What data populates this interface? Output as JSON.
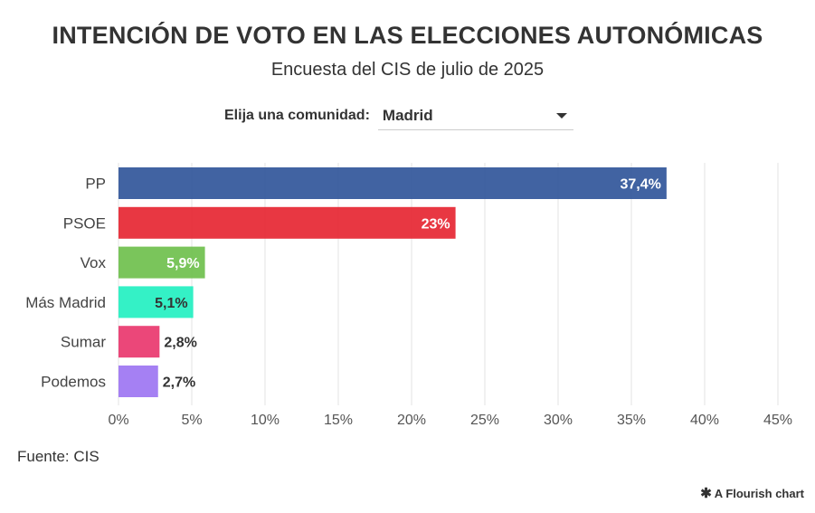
{
  "header": {
    "title": "INTENCIÓN DE VOTO EN LAS ELECCIONES AUTONÓMICAS",
    "subtitle": "Encuesta del CIS de julio de 2025"
  },
  "control": {
    "label": "Elija una comunidad:",
    "selected": "Madrid"
  },
  "footer": {
    "source": "Fuente: CIS",
    "credit": "A Flourish chart",
    "credit_icon": "flourish-asterisk-icon"
  },
  "chart_data": {
    "type": "bar",
    "orientation": "horizontal",
    "categories": [
      "PP",
      "PSOE",
      "Vox",
      "Más Madrid",
      "Sumar",
      "Podemos"
    ],
    "values": [
      37.4,
      23,
      5.9,
      5.1,
      2.8,
      2.7
    ],
    "value_labels": [
      "37,4%",
      "23%",
      "5,9%",
      "5,1%",
      "2,8%",
      "2,7%"
    ],
    "colors": [
      "#2c5298",
      "#e6212e",
      "#6cbf49",
      "#1ef0c0",
      "#e9336a",
      "#9b72f2"
    ],
    "xlim": [
      0,
      45
    ],
    "x_ticks": [
      0,
      5,
      10,
      15,
      20,
      25,
      30,
      35,
      40,
      45
    ],
    "x_tick_labels": [
      "0%",
      "5%",
      "10%",
      "15%",
      "20%",
      "25%",
      "30%",
      "35%",
      "40%",
      "45%"
    ],
    "grid": true,
    "xlabel": "",
    "ylabel": ""
  }
}
